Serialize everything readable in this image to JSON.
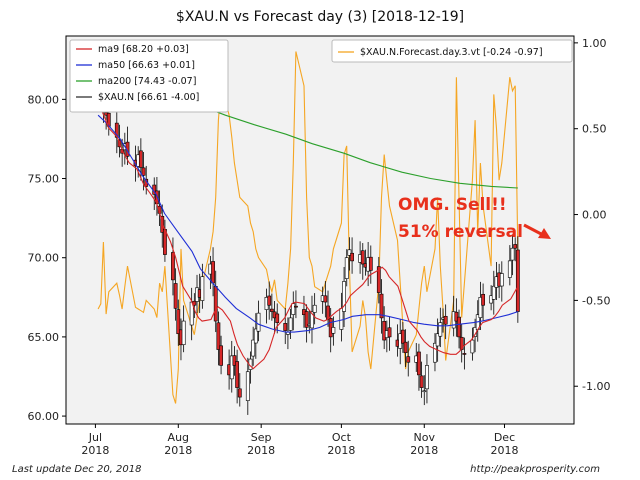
{
  "chart_data": {
    "type": "candlestick_with_lines",
    "title": "$XAU.N vs Forecast day (3)  [2018-12-19]",
    "x_ticks": [
      {
        "date": "2018-07-01",
        "label": [
          "Jul",
          "2018"
        ]
      },
      {
        "date": "2018-08-01",
        "label": [
          "Aug",
          "2018"
        ]
      },
      {
        "date": "2018-09-01",
        "label": [
          "Sep",
          "2018"
        ]
      },
      {
        "date": "2018-10-01",
        "label": [
          "Oct",
          "2018"
        ]
      },
      {
        "date": "2018-11-01",
        "label": [
          "Nov",
          "2018"
        ]
      },
      {
        "date": "2018-12-01",
        "label": [
          "Dec",
          "2018"
        ]
      }
    ],
    "xlim": [
      "2018-06-20",
      "2018-12-27"
    ],
    "left_axis": {
      "ylim": [
        59.5,
        84.0
      ],
      "ticks": [
        "60.00",
        "65.00",
        "70.00",
        "75.00",
        "80.00"
      ]
    },
    "right_axis": {
      "ylim": [
        -1.22,
        1.04
      ],
      "ticks": [
        "-1.00",
        "-0.50",
        "0.00",
        "0.50",
        "1.00"
      ]
    },
    "legend_left": [
      {
        "name": "ma9 [68.20 +0.03]",
        "color": "#d62728"
      },
      {
        "name": "ma50 [66.63 +0.01]",
        "color": "#1f2fd6"
      },
      {
        "name": "ma200 [74.43 -0.07]",
        "color": "#2ca02c"
      },
      {
        "name": "$XAU.N [66.61 -4.00]",
        "color": "#333333"
      }
    ],
    "legend_right": [
      {
        "name": "$XAU.N.Forecast.day.3.vt [-0.24 -0.97]",
        "color": "#f5a623"
      }
    ],
    "colors": {
      "up": "#ffffff",
      "down": "#d62728",
      "wick": "#000000",
      "background": "#f2f2f2"
    },
    "annotation": {
      "lines": [
        "OMG.  Sell!!",
        "51% reversal"
      ],
      "color": "#e8301c",
      "arrow_to_date": "2018-12-18"
    },
    "closes": [
      80.8,
      80.2,
      79.4,
      79.0,
      78.3,
      77.6,
      77.0,
      76.6,
      77.2,
      76.4,
      75.8,
      76.5,
      75.7,
      75.2,
      74.5,
      74.0,
      73.4,
      72.8,
      71.6,
      70.2,
      68.6,
      66.8,
      65.2,
      64.5,
      66.0,
      67.2,
      67.0,
      68.1,
      67.5,
      68.8,
      69.6,
      68.4,
      66.0,
      64.2,
      63.2,
      62.6,
      63.8,
      63.2,
      61.8,
      61.2,
      62.8,
      63.6,
      64.8,
      65.5,
      66.5,
      67.5,
      67.0,
      66.6,
      66.2,
      65.9,
      65.4,
      65.3,
      66.2,
      67.1,
      66.9,
      66.4,
      65.6,
      65.8,
      66.6,
      67.0,
      67.6,
      67.2,
      66.1,
      65.0,
      65.6,
      66.8,
      68.5,
      70.0,
      70.5,
      69.8,
      70.2,
      69.6,
      69.4,
      70.0,
      69.2,
      67.8,
      66.2,
      64.8,
      65.4,
      65.0,
      64.4,
      65.2,
      64.6,
      64.0,
      63.4,
      63.8,
      62.6,
      61.8,
      61.6,
      63.2,
      64.6,
      65.2,
      65.9,
      66.2,
      65.8,
      66.6,
      66.0,
      65.0,
      64.2,
      63.9,
      64.8,
      65.6,
      66.4,
      67.5,
      67.0,
      67.6,
      68.2,
      68.8,
      68.2,
      69.0,
      69.8,
      70.6,
      70.6,
      66.6
    ],
    "forecast": [
      -0.55,
      -0.52,
      -0.16,
      -0.58,
      -0.45,
      -0.4,
      -0.47,
      -0.55,
      -0.42,
      -0.3,
      -0.54,
      -0.55,
      -0.56,
      -0.57,
      -0.5,
      -0.55,
      -0.6,
      -0.4,
      -0.45,
      -0.3,
      -1.05,
      -1.1,
      -0.9,
      -0.2,
      -0.5,
      -0.65,
      -0.7,
      -0.6,
      -0.5,
      -0.4,
      -0.2,
      -0.1,
      0.1,
      0.55,
      0.75,
      0.58,
      0.45,
      0.3,
      0.2,
      0.1,
      0.05,
      -0.05,
      -0.1,
      -0.2,
      -0.25,
      -0.32,
      -0.4,
      -0.45,
      -0.38,
      -0.5,
      -0.55,
      -0.4,
      -0.2,
      0.3,
      0.95,
      0.75,
      0.1,
      -0.25,
      -0.3,
      -0.42,
      -0.45,
      -0.4,
      -0.35,
      -0.3,
      -0.2,
      -0.05,
      0.35,
      0.4,
      -0.3,
      -0.8,
      -0.65,
      -0.5,
      -0.6,
      -0.8,
      -0.9,
      -0.4,
      0.1,
      0.35,
      0.2,
      0.05,
      -0.15,
      -0.4,
      -0.65,
      -0.9,
      -0.8,
      -0.7,
      -0.55,
      -0.4,
      -0.3,
      -0.45,
      -0.2,
      0.1,
      -0.3,
      -0.55,
      -0.85,
      -0.5,
      0.8,
      0.1,
      -0.6,
      -0.4,
      0.2,
      0.55,
      -0.1,
      0.3,
      0.05,
      -0.3,
      0.7,
      0.5,
      0.2,
      0.3,
      0.8,
      0.72,
      0.75,
      -0.24
    ],
    "ma9": [
      79.8,
      79.3,
      78.8,
      78.2,
      77.6,
      77.0,
      76.5,
      76.0,
      75.6,
      75.1,
      74.6,
      74.1,
      73.5,
      72.8,
      72.0,
      71.0,
      70.0,
      69.1,
      68.2,
      67.3,
      66.6,
      66.2,
      66.0,
      66.1,
      66.6,
      66.9,
      66.7,
      66.0,
      65.2,
      64.5,
      63.8,
      63.2,
      63.0,
      63.2,
      63.6,
      64.2,
      64.9,
      65.6,
      66.2,
      66.7,
      67.1,
      67.2,
      67.1,
      66.8,
      66.5,
      66.2,
      66.0,
      66.1,
      66.3,
      66.6,
      66.9,
      67.2,
      67.6,
      68.0,
      68.3,
      68.6,
      68.9,
      69.2,
      69.4,
      69.2,
      68.8,
      68.2,
      67.5,
      66.8,
      66.0,
      65.4,
      65.0,
      64.7,
      64.4,
      64.2,
      64.1,
      64.0,
      63.9,
      63.9,
      64.1,
      64.4,
      64.8,
      65.2,
      65.6,
      65.9,
      66.1,
      66.3,
      66.6,
      67.0,
      67.4,
      67.8,
      68.2
    ],
    "ma50": [
      79.0,
      78.5,
      77.5,
      76.4,
      75.2,
      74.0,
      72.8,
      71.6,
      70.4,
      69.3,
      68.3,
      67.5,
      66.8,
      66.2,
      65.8,
      65.5,
      65.3,
      65.3,
      65.4,
      65.6,
      65.9,
      66.1,
      66.3,
      66.4,
      66.4,
      66.3,
      66.1,
      65.9,
      65.8,
      65.7,
      65.7,
      65.8,
      65.9,
      66.0,
      66.2,
      66.4,
      66.6
    ],
    "ma200": [
      81.5,
      80.5,
      79.7,
      79.0,
      78.4,
      77.8,
      77.2,
      76.6,
      76.0,
      75.4,
      75.0,
      74.7,
      74.5,
      74.4
    ]
  },
  "footer": {
    "left": "Last update Dec 20, 2018",
    "right": "http://peakprosperity.com"
  }
}
